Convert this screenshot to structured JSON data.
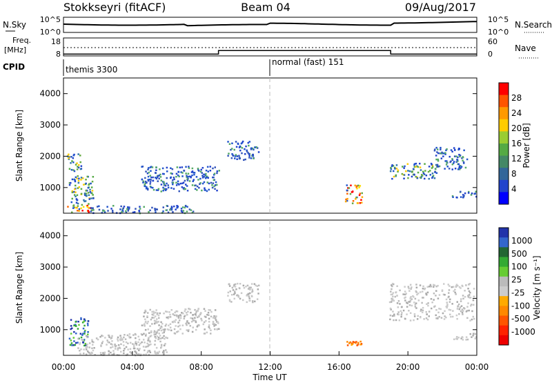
{
  "header": {
    "station": "Stokkseyri (fitACF)",
    "beam": "Beam 04",
    "date": "09/Aug/2017"
  },
  "noise_panel": {
    "left_label": "N.Sky",
    "left_ticks": [
      "10^5",
      "10^0"
    ],
    "right_ticks": [
      "10^5",
      "10^0"
    ],
    "right_label": "N.Search"
  },
  "freq_panel": {
    "left_label_1": "Freq.",
    "left_label_2": "[MHz]",
    "left_ticks": [
      "18",
      "8"
    ],
    "right_ticks": [
      "60",
      "0"
    ],
    "right_label": "Nave",
    "cpid_label": "CPID",
    "freq_steps": [
      {
        "from_hour": 0,
        "to_hour": 9,
        "mhz": 9.0
      },
      {
        "from_hour": 9,
        "to_hour": 19,
        "mhz": 11.0
      },
      {
        "from_hour": 19,
        "to_hour": 24,
        "mhz": 9.0
      }
    ],
    "nave_level": 22,
    "cpid_segments": [
      {
        "start_hour": 0,
        "text": "themis 3300"
      },
      {
        "start_hour": 12,
        "text": "normal (fast) 151"
      }
    ]
  },
  "power_panel": {
    "ylabel": "Slant Range [km]",
    "cbar_label": "Power [dB]",
    "cbar_ticks": [
      "28",
      "24",
      "20",
      "16",
      "12",
      "8",
      "4"
    ],
    "cbar_colors": [
      "#ff0000",
      "#ff5500",
      "#ff9900",
      "#ffcc00",
      "#9acd32",
      "#55aa44",
      "#448866",
      "#336699",
      "#2244cc",
      "#0000ff"
    ]
  },
  "velocity_panel": {
    "ylabel": "Slant Range [km]",
    "cbar_label": "Velocity [m s⁻¹]",
    "cbar_ticks": [
      "1000",
      "500",
      "100",
      "25",
      "-25",
      "-100",
      "-500",
      "-1000"
    ],
    "cbar_colors": [
      "#2233aa",
      "#3366cc",
      "#226633",
      "#33aa33",
      "#66cc33",
      "#bbbbbb",
      "#cccccc",
      "#ffaa00",
      "#ff8800",
      "#ff5500",
      "#ff2200",
      "#ee0000"
    ]
  },
  "chart_data": {
    "type": "heatmap",
    "xlabel": "Time UT",
    "x_ticks": [
      "00:00",
      "04:00",
      "08:00",
      "12:00",
      "16:00",
      "20:00",
      "00:00"
    ],
    "y_ticks": [
      "1000",
      "2000",
      "3000",
      "4000"
    ],
    "xlim_hours": [
      0,
      24
    ],
    "ylim_km": [
      180,
      4500
    ],
    "grid": false,
    "power_regions": [
      {
        "t0": 0.2,
        "t1": 1.6,
        "r0": 200,
        "r1": 500,
        "level": "high"
      },
      {
        "t0": 0.3,
        "t1": 1.7,
        "r0": 500,
        "r1": 1400,
        "level": "mid"
      },
      {
        "t0": 0.2,
        "t1": 1.0,
        "r0": 1500,
        "r1": 2100,
        "level": "mid"
      },
      {
        "t0": 1.5,
        "t1": 7.5,
        "r0": 200,
        "r1": 450,
        "level": "low"
      },
      {
        "t0": 4.5,
        "t1": 9.0,
        "r0": 900,
        "r1": 1700,
        "level": "low"
      },
      {
        "t0": 9.5,
        "t1": 11.3,
        "r0": 1900,
        "r1": 2500,
        "level": "low"
      },
      {
        "t0": 16.3,
        "t1": 17.3,
        "r0": 500,
        "r1": 1100,
        "level": "high"
      },
      {
        "t0": 18.9,
        "t1": 21.7,
        "r0": 1300,
        "r1": 1800,
        "level": "mid"
      },
      {
        "t0": 21.5,
        "t1": 23.4,
        "r0": 1600,
        "r1": 2300,
        "level": "low"
      },
      {
        "t0": 22.5,
        "t1": 24.0,
        "r0": 700,
        "r1": 900,
        "level": "low"
      }
    ],
    "velocity_regions": [
      {
        "t0": 0.3,
        "t1": 1.4,
        "r0": 500,
        "r1": 1400,
        "level": "pos"
      },
      {
        "t0": 0.8,
        "t1": 6.0,
        "r0": 200,
        "r1": 900,
        "level": "ground"
      },
      {
        "t0": 4.5,
        "t1": 9.0,
        "r0": 900,
        "r1": 1700,
        "level": "ground"
      },
      {
        "t0": 9.5,
        "t1": 11.3,
        "r0": 1900,
        "r1": 2500,
        "level": "ground"
      },
      {
        "t0": 16.3,
        "t1": 17.3,
        "r0": 500,
        "r1": 650,
        "level": "neg"
      },
      {
        "t0": 18.9,
        "t1": 23.8,
        "r0": 1300,
        "r1": 2500,
        "level": "ground"
      },
      {
        "t0": 22.5,
        "t1": 24.0,
        "r0": 700,
        "r1": 900,
        "level": "ground"
      }
    ]
  }
}
